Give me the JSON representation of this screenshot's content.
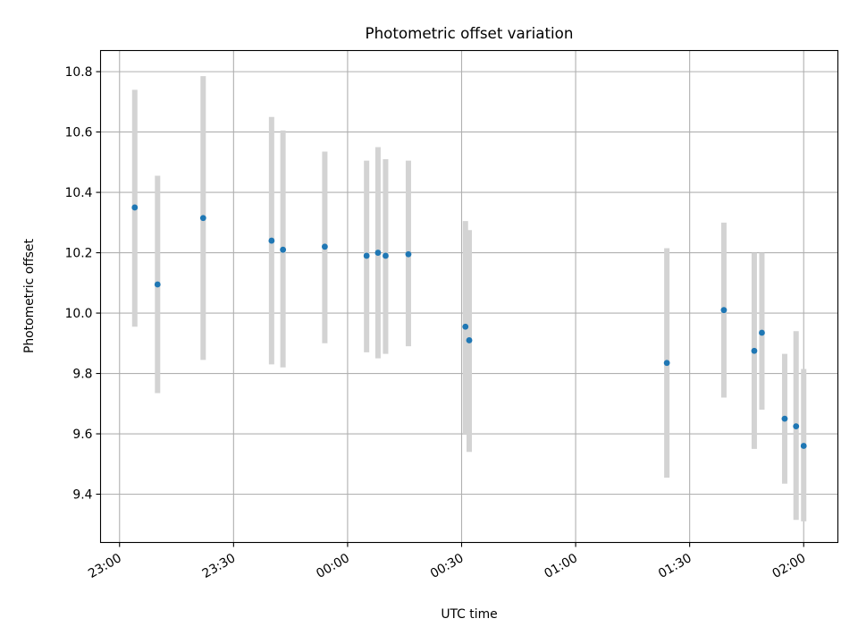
{
  "chart_data": {
    "type": "scatter",
    "title": "Photometric offset variation",
    "xlabel": "UTC time",
    "ylabel": "Photometric offset",
    "x_axis": "time",
    "grid": true,
    "x_ticks": [
      "23:00",
      "23:30",
      "00:00",
      "00:30",
      "01:00",
      "01:30",
      "02:00"
    ],
    "x_tick_values": [
      "23:00",
      "23:30",
      "24:00",
      "24:30",
      "25:00",
      "25:30",
      "26:00"
    ],
    "xlim": [
      "22:55",
      "26:09"
    ],
    "y_ticks": [
      9.4,
      9.6,
      9.8,
      10.0,
      10.2,
      10.4,
      10.6,
      10.8
    ],
    "ylim": [
      9.24,
      10.87
    ],
    "marker_color": "#1f77b4",
    "errorbar_color": "#d3d3d3",
    "series": [
      {
        "x": [
          "23:04",
          "23:10",
          "23:22",
          "23:40",
          "23:43",
          "23:54",
          "24:05",
          "24:08",
          "24:10",
          "24:16",
          "24:31",
          "24:32",
          "25:24",
          "25:39",
          "25:47",
          "25:49",
          "25:55",
          "25:58",
          "26:00"
        ],
        "y": [
          10.35,
          10.095,
          10.315,
          10.24,
          10.21,
          10.22,
          10.19,
          10.2,
          10.19,
          10.195,
          9.955,
          9.91,
          9.835,
          10.01,
          9.875,
          9.935,
          9.65,
          9.625,
          9.56
        ],
        "yerr_low": [
          9.955,
          9.735,
          9.845,
          9.83,
          9.82,
          9.9,
          9.87,
          9.85,
          9.865,
          9.89,
          9.6,
          9.54,
          9.455,
          9.72,
          9.55,
          9.68,
          9.435,
          9.315,
          9.31
        ],
        "yerr_high": [
          10.74,
          10.455,
          10.785,
          10.65,
          10.605,
          10.535,
          10.505,
          10.55,
          10.51,
          10.505,
          10.305,
          10.275,
          10.215,
          10.3,
          10.2,
          10.2,
          9.865,
          9.94,
          9.815
        ]
      }
    ]
  }
}
